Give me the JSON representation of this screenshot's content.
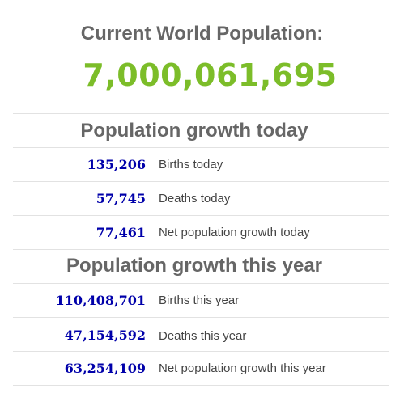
{
  "header": {
    "title": "Current World Population:",
    "population": "7,000,061,695"
  },
  "today": {
    "title": "Population growth today",
    "rows": [
      {
        "value": "135,206",
        "label": "Births today"
      },
      {
        "value": "57,745",
        "label": "Deaths today"
      },
      {
        "value": "77,461",
        "label": "Net population growth today"
      }
    ]
  },
  "year": {
    "title": "Population growth this year",
    "rows": [
      {
        "value": "110,408,701",
        "label": "Births this year"
      },
      {
        "value": "47,154,592",
        "label": "Deaths this year"
      },
      {
        "value": "63,254,109",
        "label": "Net population growth this year"
      }
    ]
  },
  "colors": {
    "heading": "#666666",
    "counter": "#7cbd29",
    "value": "#0000aa",
    "label": "#444444",
    "divider": "#e2e2e2"
  }
}
